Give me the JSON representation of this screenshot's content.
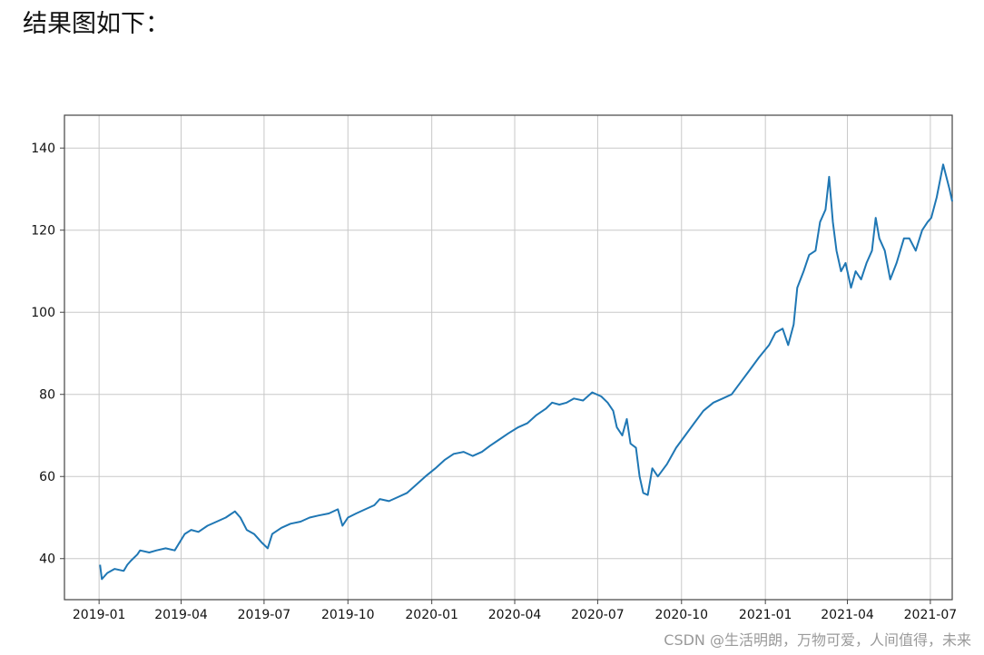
{
  "heading": "结果图如下：",
  "watermark": "CSDN @生活明朗，万物可爱，人间值得，未来",
  "chart_data": {
    "type": "line",
    "title": "",
    "xlabel": "",
    "ylabel": "",
    "grid": true,
    "x_ticks": [
      "2019-01",
      "2019-04",
      "2019-07",
      "2019-10",
      "2020-01",
      "2020-04",
      "2020-07",
      "2020-10",
      "2021-01",
      "2021-04",
      "2021-07"
    ],
    "y_ticks": [
      40,
      60,
      80,
      100,
      120,
      140
    ],
    "xlim": [
      "2018-11-24",
      "2021-07-25"
    ],
    "ylim": [
      30,
      148
    ],
    "colors": {
      "line": "#1f77b4",
      "grid": "#c8c8c8",
      "axes": "#444444"
    },
    "series": [
      {
        "points": [
          [
            "2019-01-02",
            38.5
          ],
          [
            "2019-01-04",
            35.0
          ],
          [
            "2019-01-10",
            36.5
          ],
          [
            "2019-01-18",
            37.5
          ],
          [
            "2019-01-28",
            37.0
          ],
          [
            "2019-02-01",
            38.5
          ],
          [
            "2019-02-05",
            39.5
          ],
          [
            "2019-02-12",
            41.0
          ],
          [
            "2019-02-15",
            42.0
          ],
          [
            "2019-02-25",
            41.5
          ],
          [
            "2019-03-05",
            42.0
          ],
          [
            "2019-03-15",
            42.5
          ],
          [
            "2019-03-25",
            42.0
          ],
          [
            "2019-04-05",
            46.0
          ],
          [
            "2019-04-12",
            47.0
          ],
          [
            "2019-04-20",
            46.5
          ],
          [
            "2019-04-30",
            48.0
          ],
          [
            "2019-05-10",
            49.0
          ],
          [
            "2019-05-20",
            50.0
          ],
          [
            "2019-05-30",
            51.5
          ],
          [
            "2019-06-05",
            50.0
          ],
          [
            "2019-06-12",
            47.0
          ],
          [
            "2019-06-20",
            46.0
          ],
          [
            "2019-06-28",
            44.0
          ],
          [
            "2019-07-05",
            42.5
          ],
          [
            "2019-07-10",
            46.0
          ],
          [
            "2019-07-20",
            47.5
          ],
          [
            "2019-07-30",
            48.5
          ],
          [
            "2019-08-10",
            49.0
          ],
          [
            "2019-08-20",
            50.0
          ],
          [
            "2019-08-30",
            50.5
          ],
          [
            "2019-09-10",
            51.0
          ],
          [
            "2019-09-20",
            52.0
          ],
          [
            "2019-09-25",
            48.0
          ],
          [
            "2019-10-01",
            50.0
          ],
          [
            "2019-10-10",
            51.0
          ],
          [
            "2019-10-20",
            52.0
          ],
          [
            "2019-10-30",
            53.0
          ],
          [
            "2019-11-05",
            54.5
          ],
          [
            "2019-11-15",
            54.0
          ],
          [
            "2019-11-25",
            55.0
          ],
          [
            "2019-12-05",
            56.0
          ],
          [
            "2019-12-15",
            58.0
          ],
          [
            "2019-12-25",
            60.0
          ],
          [
            "2020-01-05",
            62.0
          ],
          [
            "2020-01-15",
            64.0
          ],
          [
            "2020-01-25",
            65.5
          ],
          [
            "2020-02-05",
            66.0
          ],
          [
            "2020-02-15",
            65.0
          ],
          [
            "2020-02-25",
            66.0
          ],
          [
            "2020-03-05",
            67.5
          ],
          [
            "2020-03-15",
            69.0
          ],
          [
            "2020-03-25",
            70.5
          ],
          [
            "2020-04-05",
            72.0
          ],
          [
            "2020-04-15",
            73.0
          ],
          [
            "2020-04-25",
            75.0
          ],
          [
            "2020-05-05",
            76.5
          ],
          [
            "2020-05-12",
            78.0
          ],
          [
            "2020-05-20",
            77.5
          ],
          [
            "2020-05-28",
            78.0
          ],
          [
            "2020-06-05",
            79.0
          ],
          [
            "2020-06-15",
            78.5
          ],
          [
            "2020-06-25",
            80.5
          ],
          [
            "2020-07-05",
            79.5
          ],
          [
            "2020-07-12",
            78.0
          ],
          [
            "2020-07-18",
            76.0
          ],
          [
            "2020-07-22",
            72.0
          ],
          [
            "2020-07-28",
            70.0
          ],
          [
            "2020-08-02",
            74.0
          ],
          [
            "2020-08-06",
            68.0
          ],
          [
            "2020-08-12",
            67.0
          ],
          [
            "2020-08-16",
            60.0
          ],
          [
            "2020-08-20",
            56.0
          ],
          [
            "2020-08-25",
            55.5
          ],
          [
            "2020-08-30",
            62.0
          ],
          [
            "2020-09-05",
            60.0
          ],
          [
            "2020-09-15",
            63.0
          ],
          [
            "2020-09-25",
            67.0
          ],
          [
            "2020-10-05",
            70.0
          ],
          [
            "2020-10-15",
            73.0
          ],
          [
            "2020-10-25",
            76.0
          ],
          [
            "2020-11-05",
            78.0
          ],
          [
            "2020-11-15",
            79.0
          ],
          [
            "2020-11-25",
            80.0
          ],
          [
            "2020-12-05",
            83.0
          ],
          [
            "2020-12-15",
            86.0
          ],
          [
            "2020-12-25",
            89.0
          ],
          [
            "2021-01-05",
            92.0
          ],
          [
            "2021-01-12",
            95.0
          ],
          [
            "2021-01-20",
            96.0
          ],
          [
            "2021-01-26",
            92.0
          ],
          [
            "2021-02-01",
            97.0
          ],
          [
            "2021-02-05",
            106.0
          ],
          [
            "2021-02-12",
            110.0
          ],
          [
            "2021-02-18",
            114.0
          ],
          [
            "2021-02-25",
            115.0
          ],
          [
            "2021-03-02",
            122.0
          ],
          [
            "2021-03-08",
            125.0
          ],
          [
            "2021-03-12",
            133.0
          ],
          [
            "2021-03-16",
            122.0
          ],
          [
            "2021-03-20",
            115.0
          ],
          [
            "2021-03-25",
            110.0
          ],
          [
            "2021-03-30",
            112.0
          ],
          [
            "2021-04-05",
            106.0
          ],
          [
            "2021-04-10",
            110.0
          ],
          [
            "2021-04-16",
            108.0
          ],
          [
            "2021-04-22",
            112.0
          ],
          [
            "2021-04-28",
            115.0
          ],
          [
            "2021-05-02",
            123.0
          ],
          [
            "2021-05-06",
            118.0
          ],
          [
            "2021-05-12",
            115.0
          ],
          [
            "2021-05-18",
            108.0
          ],
          [
            "2021-05-25",
            112.0
          ],
          [
            "2021-06-02",
            118.0
          ],
          [
            "2021-06-08",
            118.0
          ],
          [
            "2021-06-15",
            115.0
          ],
          [
            "2021-06-22",
            120.0
          ],
          [
            "2021-06-28",
            122.0
          ],
          [
            "2021-07-02",
            123.0
          ],
          [
            "2021-07-08",
            128.0
          ],
          [
            "2021-07-15",
            136.0
          ],
          [
            "2021-07-22",
            130.0
          ],
          [
            "2021-07-25",
            127.0
          ]
        ]
      }
    ]
  }
}
